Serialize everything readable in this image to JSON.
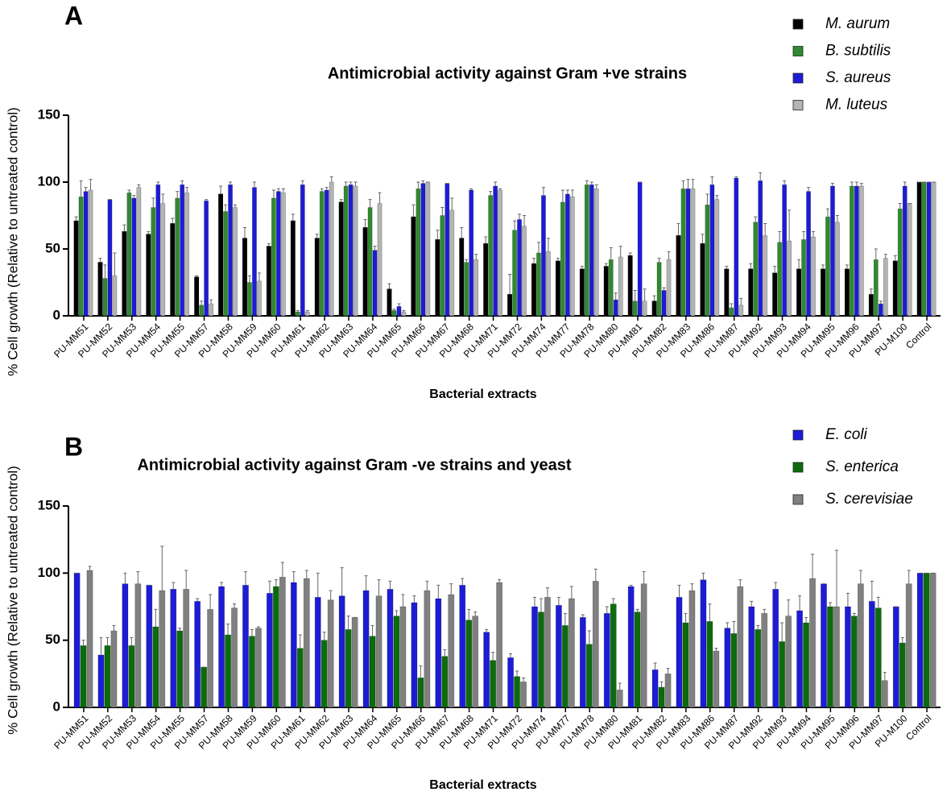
{
  "chart_data": [
    {
      "type": "bar",
      "panel_label": "A",
      "title": "Antimicrobial activity against Gram +ve strains",
      "x_label": "Bacterial extracts",
      "y_label": "% Cell growth (Relative to untreated control)",
      "categories": [
        "PU-MM51",
        "PU-MM52",
        "PU-MM53",
        "PU-MM54",
        "PU-MM55",
        "PU-MM57",
        "PU-MM58",
        "PU-MM59",
        "PU-MM60",
        "PU-MM61",
        "PU-MM62",
        "PU-MM63",
        "PU-MM64",
        "PU-MM65",
        "PU-MM66",
        "PU-MM67",
        "PU-MM68",
        "PU-MM71",
        "PU-MM72",
        "PU-MM74",
        "PU-MM77",
        "PU-MM78",
        "PU-MM80",
        "PU-MM81",
        "PU-MM82",
        "PU-MM83",
        "PU-MM86",
        "PU-MM87",
        "PU-MM92",
        "PU-MM93",
        "PU-MM94",
        "PU-MM95",
        "PU-MM96",
        "PU-MM97",
        "PU-M100",
        "Control"
      ],
      "series": [
        {
          "name": "M. aurum",
          "color": "#000000",
          "values": [
            71,
            40,
            63,
            61,
            69,
            29,
            91,
            58,
            52,
            71,
            58,
            85,
            66,
            20,
            74,
            57,
            58,
            54,
            16,
            39,
            41,
            35,
            37,
            45,
            11,
            60,
            54,
            35,
            35,
            32,
            35,
            35,
            35,
            16,
            41,
            100
          ],
          "errors": [
            3,
            3,
            5,
            2,
            4,
            1,
            6,
            8,
            2,
            5,
            3,
            2,
            6,
            4,
            9,
            7,
            8,
            5,
            15,
            4,
            2,
            2,
            2,
            2,
            4,
            9,
            7,
            2,
            4,
            5,
            7,
            3,
            3,
            4,
            4,
            0
          ]
        },
        {
          "name": "B. subtilis",
          "color": "#2f8a2f",
          "values": [
            89,
            28,
            92,
            81,
            88,
            8,
            78,
            25,
            88,
            3,
            93,
            97,
            81,
            4,
            95,
            75,
            40,
            90,
            64,
            47,
            85,
            98,
            42,
            11,
            40,
            95,
            83,
            6,
            70,
            55,
            57,
            74,
            97,
            42,
            80,
            100
          ],
          "errors": [
            12,
            10,
            2,
            7,
            5,
            3,
            5,
            5,
            6,
            1,
            2,
            3,
            6,
            1,
            5,
            6,
            2,
            3,
            7,
            8,
            9,
            3,
            9,
            8,
            3,
            6,
            8,
            3,
            4,
            8,
            6,
            6,
            3,
            8,
            4,
            0
          ]
        },
        {
          "name": "S. aureus",
          "color": "#1c1cd6",
          "values": [
            93,
            87,
            88,
            98,
            98,
            86,
            98,
            96,
            93,
            98,
            94,
            98,
            49,
            7,
            99,
            99,
            94,
            97,
            72,
            90,
            91,
            98,
            12,
            100,
            19,
            95,
            98,
            103,
            101,
            98,
            93,
            97,
            97,
            9,
            97,
            100
          ],
          "errors": [
            3,
            0,
            2,
            2,
            3,
            1,
            2,
            4,
            2,
            3,
            2,
            2,
            3,
            2,
            2,
            0,
            1,
            3,
            4,
            6,
            3,
            2,
            5,
            0,
            2,
            7,
            6,
            1,
            6,
            3,
            3,
            2,
            3,
            2,
            3,
            0
          ]
        },
        {
          "name": "M. luteus",
          "color": "#b4b4b4",
          "values": [
            94,
            30,
            96,
            84,
            92,
            9,
            81,
            26,
            92,
            3,
            100,
            97,
            84,
            3,
            100,
            79,
            42,
            94,
            67,
            48,
            89,
            95,
            44,
            11,
            42,
            95,
            87,
            8,
            60,
            56,
            59,
            70,
            97,
            43,
            84,
            100
          ],
          "errors": [
            8,
            17,
            2,
            7,
            4,
            3,
            2,
            6,
            3,
            1,
            4,
            3,
            8,
            1,
            0,
            9,
            4,
            1,
            8,
            10,
            5,
            3,
            8,
            9,
            6,
            7,
            3,
            5,
            9,
            23,
            4,
            5,
            2,
            3,
            0,
            0
          ]
        }
      ],
      "ylim": [
        0,
        150
      ],
      "yticks": [
        0,
        50,
        100,
        150
      ]
    },
    {
      "type": "bar",
      "panel_label": "B",
      "title": "Antimicrobial activity against Gram -ve strains and yeast",
      "x_label": "Bacterial extracts",
      "y_label": "% Cell growth (Relative to untreated control)",
      "categories": [
        "PU-MM51",
        "PU-MM52",
        "PU-MM53",
        "PU-MM54",
        "PU-MM55",
        "PU-MM57",
        "PU-MM58",
        "PU-MM59",
        "PU-MM60",
        "PU-MM61",
        "PU-MM62",
        "PU-MM63",
        "PU-MM64",
        "PU-MM65",
        "PU-MM66",
        "PU-MM67",
        "PU-MM68",
        "PU-MM71",
        "PU-MM72",
        "PU-MM74",
        "PU-MM77",
        "PU-MM78",
        "PU-MM80",
        "PU-MM81",
        "PU-MM82",
        "PU-MM83",
        "PU-MM86",
        "PU-MM87",
        "PU-MM92",
        "PU-MM93",
        "PU-MM94",
        "PU-MM95",
        "PU-MM96",
        "PU-MM97",
        "PU-M100",
        "Control"
      ],
      "series": [
        {
          "name": "E. coli",
          "color": "#1c1cd6",
          "values": [
            100,
            39,
            92,
            91,
            88,
            79,
            90,
            91,
            85,
            93,
            82,
            83,
            87,
            88,
            78,
            81,
            91,
            56,
            37,
            75,
            76,
            67,
            70,
            90,
            28,
            82,
            95,
            59,
            75,
            88,
            72,
            92,
            75,
            79,
            75,
            100
          ],
          "errors": [
            0,
            13,
            8,
            0,
            5,
            2,
            3,
            10,
            9,
            8,
            18,
            21,
            11,
            6,
            5,
            10,
            5,
            2,
            3,
            7,
            6,
            2,
            5,
            1,
            5,
            9,
            5,
            4,
            4,
            5,
            11,
            0,
            10,
            15,
            0,
            0
          ]
        },
        {
          "name": "S. enterica",
          "color": "#0c6b0c",
          "values": [
            46,
            46,
            46,
            60,
            57,
            30,
            54,
            53,
            90,
            44,
            50,
            58,
            53,
            68,
            22,
            38,
            65,
            35,
            23,
            71,
            61,
            47,
            77,
            71,
            15,
            63,
            64,
            55,
            58,
            49,
            63,
            75,
            68,
            74,
            48,
            100
          ],
          "errors": [
            4,
            6,
            6,
            13,
            2,
            0,
            8,
            5,
            5,
            10,
            6,
            10,
            8,
            4,
            9,
            5,
            8,
            6,
            4,
            10,
            9,
            10,
            4,
            2,
            4,
            7,
            13,
            9,
            3,
            14,
            4,
            3,
            2,
            8,
            4,
            0
          ]
        },
        {
          "name": "S. cerevisiae",
          "color": "#808080",
          "values": [
            102,
            57,
            92,
            87,
            88,
            73,
            74,
            59,
            97,
            96,
            80,
            67,
            83,
            75,
            87,
            84,
            68,
            93,
            19,
            82,
            81,
            94,
            13,
            92,
            25,
            87,
            42,
            90,
            70,
            68,
            96,
            75,
            92,
            20,
            92,
            100
          ],
          "errors": [
            3,
            4,
            9,
            33,
            14,
            11,
            3,
            1,
            11,
            6,
            7,
            0,
            12,
            9,
            7,
            8,
            3,
            2,
            3,
            7,
            9,
            9,
            5,
            9,
            4,
            5,
            2,
            5,
            3,
            12,
            18,
            42,
            10,
            6,
            10,
            0
          ]
        }
      ],
      "ylim": [
        0,
        150
      ],
      "yticks": [
        0,
        50,
        100,
        150
      ]
    }
  ]
}
